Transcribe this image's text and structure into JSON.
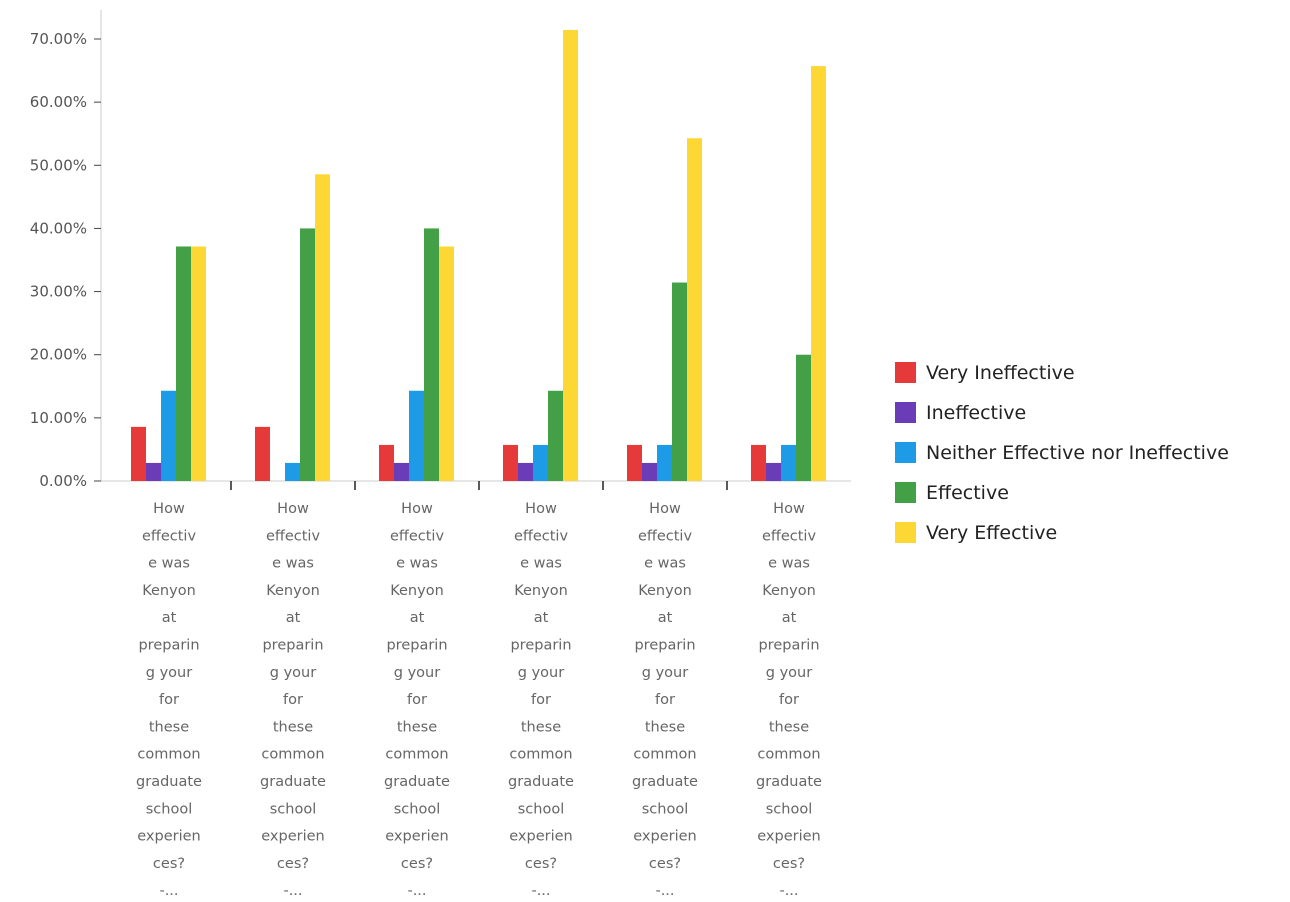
{
  "chart_data": {
    "type": "bar",
    "title": "",
    "xlabel": "",
    "ylabel": "",
    "ylim": [
      0,
      75
    ],
    "y_ticks": [
      "0.00%",
      "10.00%",
      "20.00%",
      "30.00%",
      "40.00%",
      "50.00%",
      "60.00%",
      "70.00%"
    ],
    "y_tick_values": [
      0,
      10,
      20,
      30,
      40,
      50,
      60,
      70
    ],
    "grid": false,
    "legend_position": "right",
    "categories": [
      [
        "How",
        "effectiv",
        "e was",
        "Kenyon",
        "at",
        "preparin",
        "g your",
        "for",
        "these",
        "common",
        "graduate",
        "school",
        "experien",
        "ces?",
        "-..."
      ],
      [
        "How",
        "effectiv",
        "e was",
        "Kenyon",
        "at",
        "preparin",
        "g your",
        "for",
        "these",
        "common",
        "graduate",
        "school",
        "experien",
        "ces?",
        "-..."
      ],
      [
        "How",
        "effectiv",
        "e was",
        "Kenyon",
        "at",
        "preparin",
        "g your",
        "for",
        "these",
        "common",
        "graduate",
        "school",
        "experien",
        "ces?",
        "-..."
      ],
      [
        "How",
        "effectiv",
        "e was",
        "Kenyon",
        "at",
        "preparin",
        "g your",
        "for",
        "these",
        "common",
        "graduate",
        "school",
        "experien",
        "ces?",
        "-..."
      ],
      [
        "How",
        "effectiv",
        "e was",
        "Kenyon",
        "at",
        "preparin",
        "g your",
        "for",
        "these",
        "common",
        "graduate",
        "school",
        "experien",
        "ces?",
        "-..."
      ],
      [
        "How",
        "effectiv",
        "e was",
        "Kenyon",
        "at",
        "preparin",
        "g your",
        "for",
        "these",
        "common",
        "graduate",
        "school",
        "experien",
        "ces?",
        "-..."
      ]
    ],
    "series": [
      {
        "name": "Very Ineffective",
        "color": "#e63a3a",
        "values": [
          8.57,
          8.57,
          5.71,
          5.71,
          5.71,
          5.71
        ]
      },
      {
        "name": "Ineffective",
        "color": "#6a3cb8",
        "values": [
          2.86,
          0,
          2.86,
          2.86,
          2.86,
          2.86
        ]
      },
      {
        "name": "Neither Effective nor Ineffective",
        "color": "#1e9be6",
        "values": [
          14.29,
          2.86,
          14.29,
          5.71,
          5.71,
          5.71
        ]
      },
      {
        "name": "Effective",
        "color": "#43a047",
        "values": [
          37.14,
          40.0,
          40.0,
          14.29,
          31.43,
          20.0
        ]
      },
      {
        "name": "Very Effective",
        "color": "#fdd835",
        "values": [
          37.14,
          48.57,
          37.14,
          71.43,
          54.29,
          65.71
        ]
      }
    ]
  }
}
